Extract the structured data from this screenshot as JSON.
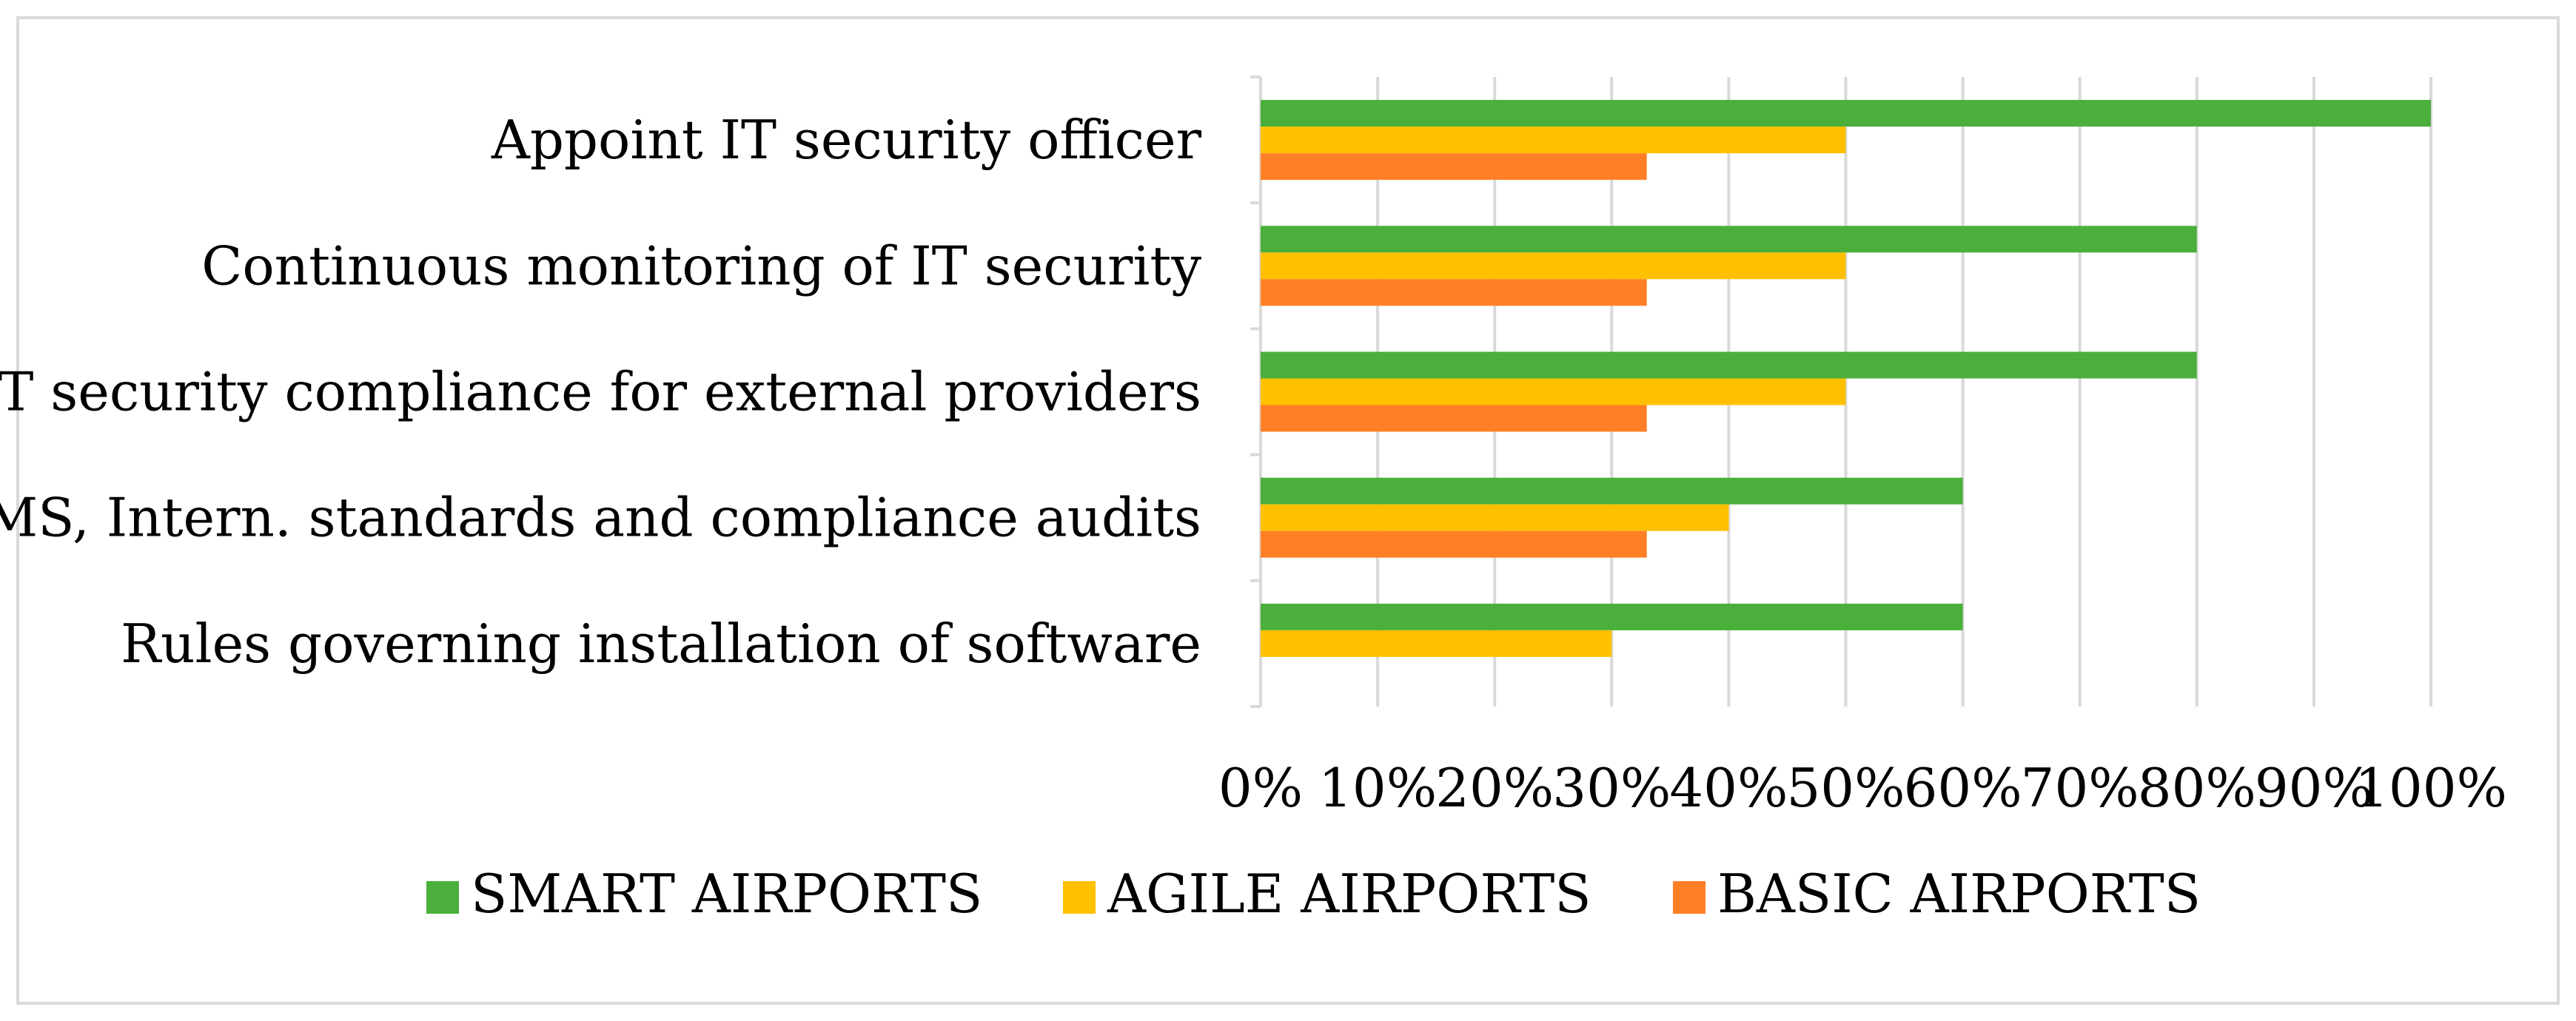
{
  "chart_data": {
    "type": "bar",
    "orientation": "horizontal",
    "title": "",
    "xlabel": "",
    "ylabel": "",
    "xlim": [
      0,
      1
    ],
    "grid": true,
    "legend_position": "bottom",
    "categories": [
      "Appoint IT security officer",
      "Continuous monitoring of IT security",
      "IT security compliance for external providers",
      "ISMS, Intern. standards and compliance audits",
      "Rules governing installation of software"
    ],
    "ticks": [
      "0%",
      "10%",
      "20%",
      "30%",
      "40%",
      "50%",
      "60%",
      "70%",
      "80%",
      "90%",
      "100%"
    ],
    "series": [
      {
        "name": "SMART AIRPORTS",
        "color": "#4AAF3B",
        "values": [
          1.0,
          0.8,
          0.8,
          0.6,
          0.6
        ]
      },
      {
        "name": "AGILE AIRPORTS",
        "color": "#FFC000",
        "values": [
          0.5,
          0.5,
          0.5,
          0.4,
          0.3
        ]
      },
      {
        "name": "BASIC AIRPORTS",
        "color": "#FF7F27",
        "values": [
          0.33,
          0.33,
          0.33,
          0.33,
          0
        ]
      }
    ]
  }
}
